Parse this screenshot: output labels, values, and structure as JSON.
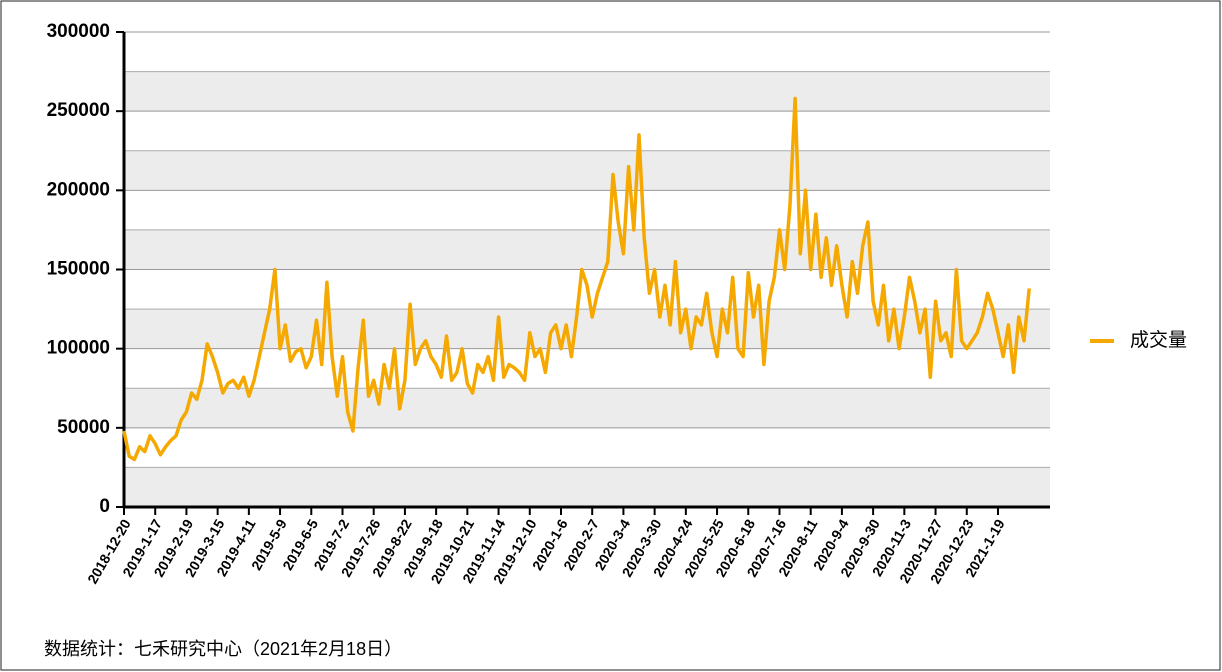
{
  "chart_data": {
    "type": "line",
    "source": "数据统计：七禾研究中心（2021年2月18日）",
    "categories": [
      "2018-12-20",
      null,
      null,
      null,
      null,
      null,
      "2019-1-17",
      null,
      null,
      null,
      null,
      null,
      "2019-2-19",
      null,
      null,
      null,
      null,
      null,
      "2019-3-15",
      null,
      null,
      null,
      null,
      null,
      "2019-4-11",
      null,
      null,
      null,
      null,
      null,
      "2019-5-9",
      null,
      null,
      null,
      null,
      null,
      "2019-6-5",
      null,
      null,
      null,
      null,
      null,
      "2019-7-2",
      null,
      null,
      null,
      null,
      null,
      "2019-7-26",
      null,
      null,
      null,
      null,
      null,
      "2019-8-22",
      null,
      null,
      null,
      null,
      null,
      "2019-9-18",
      null,
      null,
      null,
      null,
      null,
      "2019-10-21",
      null,
      null,
      null,
      null,
      null,
      "2019-11-14",
      null,
      null,
      null,
      null,
      null,
      "2019-12-10",
      null,
      null,
      null,
      null,
      null,
      "2020-1-6",
      null,
      null,
      null,
      null,
      null,
      "2020-2-7",
      null,
      null,
      null,
      null,
      null,
      "2020-3-4",
      null,
      null,
      null,
      null,
      null,
      "2020-3-30",
      null,
      null,
      null,
      null,
      null,
      "2020-4-24",
      null,
      null,
      null,
      null,
      null,
      "2020-5-25",
      null,
      null,
      null,
      null,
      null,
      "2020-6-18",
      null,
      null,
      null,
      null,
      null,
      "2020-7-16",
      null,
      null,
      null,
      null,
      null,
      "2020-8-11",
      null,
      null,
      null,
      null,
      null,
      "2020-9-4",
      null,
      null,
      null,
      null,
      null,
      "2020-9-30",
      null,
      null,
      null,
      null,
      null,
      "2020-11-3",
      null,
      null,
      null,
      null,
      null,
      "2020-11-27",
      null,
      null,
      null,
      null,
      null,
      "2020-12-23",
      null,
      null,
      null,
      null,
      null,
      "2021-1-19",
      null,
      null,
      null,
      null,
      null,
      null
    ],
    "series": [
      {
        "name": "成交量",
        "color": "#f5a800",
        "values": [
          48000,
          32000,
          30000,
          38000,
          35000,
          45000,
          40000,
          33000,
          38000,
          42000,
          45000,
          55000,
          60000,
          72000,
          68000,
          80000,
          103000,
          95000,
          85000,
          72000,
          78000,
          80000,
          75000,
          82000,
          70000,
          80000,
          95000,
          110000,
          125000,
          150000,
          100000,
          115000,
          92000,
          98000,
          100000,
          88000,
          95000,
          118000,
          90000,
          142000,
          95000,
          70000,
          95000,
          60000,
          48000,
          88000,
          118000,
          70000,
          80000,
          65000,
          90000,
          75000,
          100000,
          62000,
          80000,
          128000,
          90000,
          100000,
          105000,
          95000,
          90000,
          82000,
          108000,
          80000,
          85000,
          100000,
          78000,
          72000,
          90000,
          85000,
          95000,
          80000,
          120000,
          82000,
          90000,
          88000,
          85000,
          80000,
          110000,
          95000,
          100000,
          85000,
          110000,
          115000,
          100000,
          115000,
          95000,
          120000,
          150000,
          140000,
          120000,
          135000,
          145000,
          155000,
          210000,
          180000,
          160000,
          215000,
          175000,
          235000,
          170000,
          135000,
          150000,
          120000,
          140000,
          115000,
          155000,
          110000,
          125000,
          100000,
          120000,
          115000,
          135000,
          110000,
          95000,
          125000,
          110000,
          145000,
          100000,
          95000,
          148000,
          120000,
          140000,
          90000,
          130000,
          145000,
          175000,
          150000,
          190000,
          258000,
          160000,
          200000,
          150000,
          185000,
          145000,
          170000,
          140000,
          165000,
          140000,
          120000,
          155000,
          135000,
          165000,
          180000,
          130000,
          115000,
          140000,
          105000,
          125000,
          100000,
          120000,
          145000,
          130000,
          110000,
          125000,
          82000,
          130000,
          105000,
          110000,
          95000,
          150000,
          105000,
          100000,
          105000,
          110000,
          120000,
          135000,
          125000,
          110000,
          95000,
          115000,
          85000,
          120000,
          105000,
          138000
        ]
      }
    ],
    "ylim": [
      0,
      300000
    ],
    "yticks": [
      0,
      50000,
      100000,
      150000,
      200000,
      250000,
      300000
    ],
    "minor_yticks": [
      25000,
      75000,
      125000,
      175000,
      225000,
      275000
    ],
    "grid": true,
    "banded_background": true,
    "legend": "right"
  }
}
